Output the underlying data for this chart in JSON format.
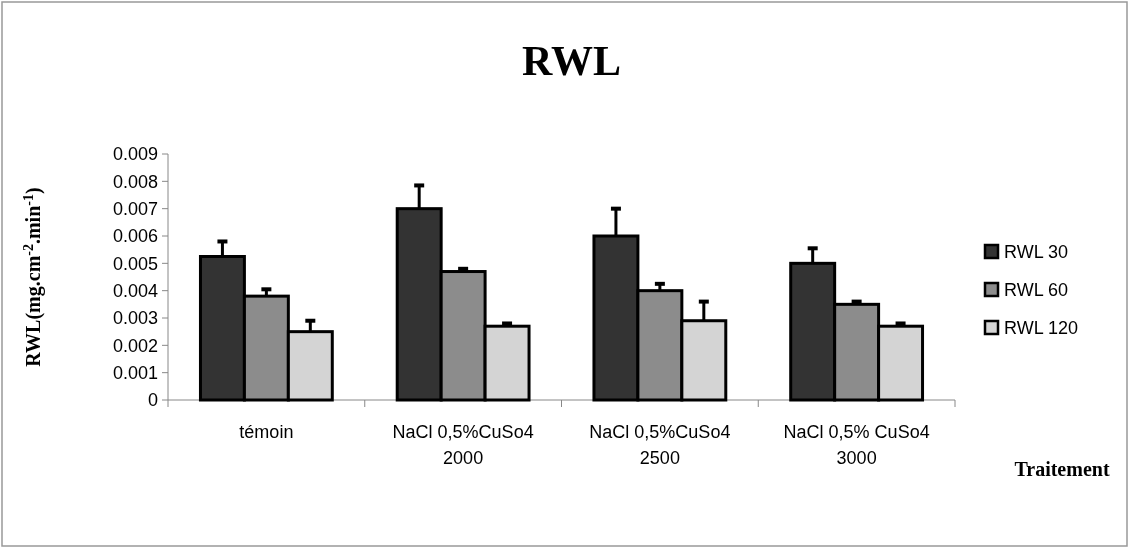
{
  "chart_data": {
    "type": "bar",
    "title": "RWL",
    "xlabel": "Traitement",
    "ylabel": "RWL(mg.cm$^{-2}$.min$^{-1}$)",
    "categories": [
      "témoin",
      "NaCl 0,5%CuSo4 2000",
      "NaCl 0,5%CuSo4 2500",
      "NaCl 0,5% CuSo4 3000"
    ],
    "series": [
      {
        "name": "RWL 30",
        "color": "#333333",
        "values": [
          0.00525,
          0.007,
          0.006,
          0.005
        ],
        "errors": [
          0.00055,
          0.00085,
          0.001,
          0.00055
        ]
      },
      {
        "name": "RWL 60",
        "color": "#8c8c8c",
        "values": [
          0.0038,
          0.0047,
          0.004,
          0.0035
        ],
        "errors": [
          0.00025,
          0.0001,
          0.00025,
          0.0001
        ]
      },
      {
        "name": "RWL 120",
        "color": "#d4d4d4",
        "values": [
          0.0025,
          0.0027,
          0.0029,
          0.0027
        ],
        "errors": [
          0.0004,
          0.0001,
          0.0007,
          0.0001
        ]
      }
    ],
    "ylim": [
      0,
      0.009
    ],
    "yticks": [
      0,
      0.001,
      0.002,
      0.003,
      0.004,
      0.005,
      0.006,
      0.007,
      0.008,
      0.009
    ],
    "legend": "right"
  }
}
